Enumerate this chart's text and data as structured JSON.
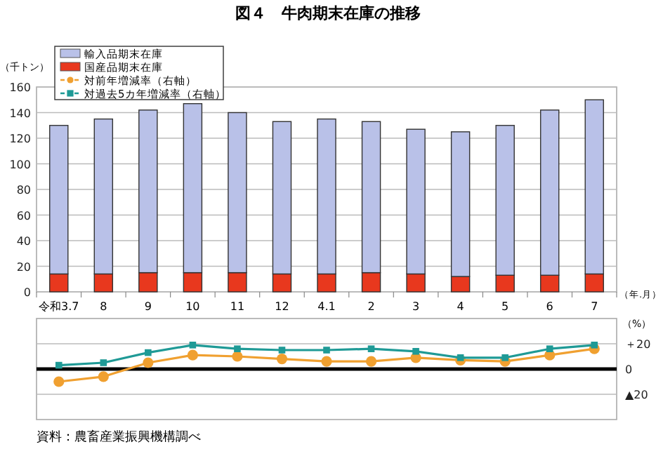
{
  "chart_data": [
    {
      "type": "bar",
      "title": "図４　牛肉期末在庫の推移",
      "ylabel": "（千トン）",
      "xlabel": "（年.月）",
      "stacked": true,
      "grid": "y",
      "legend": "top left",
      "categories": [
        "令和3.7",
        "8",
        "9",
        "10",
        "11",
        "12",
        "4.1",
        "2",
        "3",
        "4",
        "5",
        "6",
        "7"
      ],
      "ylim": [
        0,
        160
      ],
      "yticks": [
        0,
        20,
        40,
        60,
        80,
        100,
        120,
        140,
        160
      ],
      "series": [
        {
          "name": "国産品期末在庫",
          "color": "#e8381e",
          "values": [
            14,
            14,
            15,
            15,
            15,
            14,
            14,
            15,
            14,
            12,
            13,
            13,
            14
          ]
        },
        {
          "name": "輸入品期末在庫",
          "color": "#b9c1e8",
          "values": [
            116,
            121,
            127,
            132,
            125,
            119,
            121,
            118,
            113,
            113,
            117,
            129,
            136
          ]
        }
      ]
    },
    {
      "type": "line",
      "ylabel": "（%）",
      "tick_labels": "y",
      "grid": "y",
      "legend": "top left",
      "categories": [
        null,
        null,
        null,
        null,
        null,
        null,
        null,
        null,
        null,
        null,
        null,
        null,
        null
      ],
      "ylim": [
        -40,
        40
      ],
      "yticks": [
        {
          "value": 20,
          "label": "＋20"
        },
        0,
        {
          "value": -20,
          "label": "▲20"
        }
      ],
      "ref_lines": [
        {
          "axis": "y",
          "value": 0,
          "color": "#000000"
        }
      ],
      "annotations": [
        "資料：農畜産業振興機構調べ"
      ],
      "series": [
        {
          "name": "対前年増減率（右軸）",
          "color": "#f0a030",
          "marker": "circle",
          "values": [
            -10,
            -6,
            5,
            11,
            10,
            8,
            6,
            6,
            9,
            7,
            6,
            11,
            16
          ]
        },
        {
          "name": "対過去5カ年増減率（右軸）",
          "color": "#1f9a96",
          "marker": "square",
          "values": [
            3,
            5,
            13,
            19,
            16,
            15,
            15,
            16,
            14,
            9,
            9,
            16,
            19
          ]
        }
      ]
    }
  ]
}
